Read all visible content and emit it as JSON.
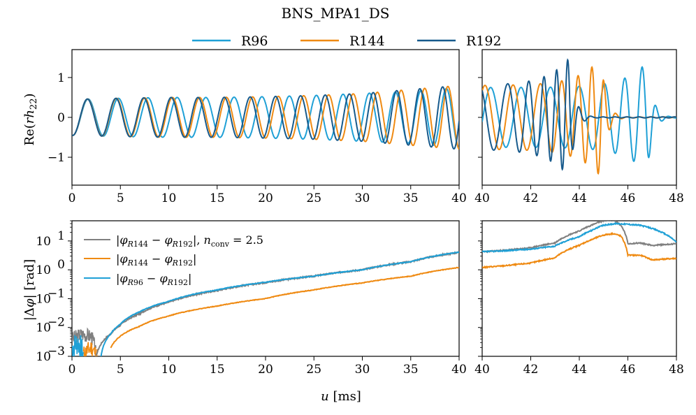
{
  "chart_data": {
    "type": "line",
    "title": "BNS_MPA1_DS",
    "colors": {
      "R96": "#1fa0d6",
      "R144": "#ef8a12",
      "R192": "#175a8c",
      "diff_nconv": "#808080"
    },
    "legend_top": [
      {
        "name": "R96",
        "color": "#1fa0d6"
      },
      {
        "name": "R144",
        "color": "#ef8a12"
      },
      {
        "name": "R192",
        "color": "#175a8c"
      }
    ],
    "xlabel": "u [ms]",
    "panels": [
      {
        "id": "strain_inspiral",
        "ylabel": "Re(rh22)",
        "xlim": [
          0,
          40
        ],
        "ylim": [
          -1.7,
          1.7
        ],
        "xticks": [
          "0",
          "5",
          "10",
          "15",
          "20",
          "25",
          "30",
          "35",
          "40"
        ],
        "yticks": [
          "1",
          "0",
          "−1"
        ],
        "series": [
          {
            "name": "R96",
            "x": [
              0,
              5,
              10,
              15,
              20,
              25,
              30,
              35,
              40
            ],
            "y_amplitude": [
              0.45,
              0.48,
              0.5,
              0.5,
              0.52,
              0.55,
              0.6,
              0.65,
              0.75
            ]
          },
          {
            "name": "R144",
            "x": [
              0,
              5,
              10,
              15,
              20,
              25,
              30,
              35,
              40
            ],
            "y_amplitude": [
              0.45,
              0.48,
              0.5,
              0.5,
              0.52,
              0.55,
              0.6,
              0.7,
              0.8
            ]
          },
          {
            "name": "R192",
            "x": [
              0,
              5,
              10,
              15,
              20,
              25,
              30,
              35,
              40
            ],
            "y_amplitude": [
              0.45,
              0.48,
              0.5,
              0.5,
              0.52,
              0.55,
              0.6,
              0.7,
              0.8
            ]
          }
        ]
      },
      {
        "id": "strain_merger",
        "xlim": [
          40,
          48
        ],
        "ylim": [
          -1.7,
          1.7
        ],
        "xticks": [
          "40",
          "42",
          "44",
          "46",
          "48"
        ],
        "series": [
          {
            "name": "R96",
            "merger_u": 46.8,
            "peak_amplitude": 1.4
          },
          {
            "name": "R144",
            "merger_u": 44.9,
            "peak_amplitude": 1.5
          },
          {
            "name": "R192",
            "merger_u": 43.6,
            "peak_amplitude": 1.5
          }
        ]
      },
      {
        "id": "phase_difference",
        "ylabel": "|Δφ| [rad]",
        "xlim": [
          0,
          40
        ],
        "ylim": [
          0.001,
          50
        ],
        "yscale": "log",
        "xticks": [
          "0",
          "5",
          "10",
          "15",
          "20",
          "25",
          "30",
          "35",
          "40"
        ],
        "yticks": [
          "10^1",
          "10^0",
          "10^-1",
          "10^-2",
          "10^-3"
        ],
        "legend": [
          {
            "label": "|φR144 − φR192|, nconv = 2.5",
            "color": "#808080"
          },
          {
            "label": "|φR144 − φR192|",
            "color": "#ef8a12"
          },
          {
            "label": "|φR96 − φR192|",
            "color": "#1fa0d6"
          }
        ],
        "series": [
          {
            "name": "|φR144 − φR192|, nconv = 2.5",
            "x": [
              2.5,
              4,
              5,
              7,
              10,
              15,
              20,
              25,
              30,
              35,
              40
            ],
            "y": [
              0.001,
              0.006,
              0.012,
              0.03,
              0.075,
              0.19,
              0.36,
              0.6,
              1.0,
              1.9,
              4.0
            ]
          },
          {
            "name": "|φR144 − φR192|",
            "x": [
              4,
              5,
              7,
              10,
              15,
              20,
              25,
              30,
              35,
              40
            ],
            "y": [
              0.002,
              0.005,
              0.011,
              0.025,
              0.055,
              0.1,
              0.2,
              0.35,
              0.6,
              1.2
            ]
          },
          {
            "name": "|φR96 − φR192|",
            "x": [
              3,
              4,
              5,
              7,
              10,
              15,
              20,
              25,
              30,
              35,
              40
            ],
            "y": [
              0.001,
              0.006,
              0.013,
              0.035,
              0.08,
              0.2,
              0.37,
              0.6,
              1.0,
              1.9,
              4.1
            ]
          }
        ]
      },
      {
        "id": "phase_difference_merger",
        "xlim": [
          40,
          48
        ],
        "ylim": [
          0.001,
          50
        ],
        "yscale": "log",
        "xticks": [
          "40",
          "42",
          "44",
          "46",
          "48"
        ],
        "series": [
          {
            "name": "|φR144 − φR192|, nconv = 2.5",
            "x": [
              40,
              41,
              42,
              43,
              44,
              44.5,
              45,
              45.4,
              45.7,
              46,
              46.5,
              47,
              48
            ],
            "y": [
              4.2,
              4.8,
              5.8,
              8.5,
              22,
              35,
              50,
              54,
              35,
              8,
              8.5,
              7,
              8
            ]
          },
          {
            "name": "|φR144 − φR192|",
            "x": [
              40,
              41,
              42,
              43,
              44,
              44.5,
              45,
              45.4,
              45.7,
              46,
              46.5,
              47,
              48
            ],
            "y": [
              1.2,
              1.4,
              1.7,
              2.6,
              7,
              11,
              16,
              18,
              15,
              3.2,
              3.2,
              2.2,
              2.5
            ]
          },
          {
            "name": "|φR96 − φR192|",
            "x": [
              40,
              41,
              42,
              43,
              44,
              44.5,
              45,
              45.5,
              46,
              46.5,
              47,
              48
            ],
            "y": [
              4.2,
              4.6,
              5.2,
              6.6,
              14,
              23,
              35,
              40,
              38,
              35,
              27,
              9
            ]
          }
        ]
      }
    ]
  }
}
